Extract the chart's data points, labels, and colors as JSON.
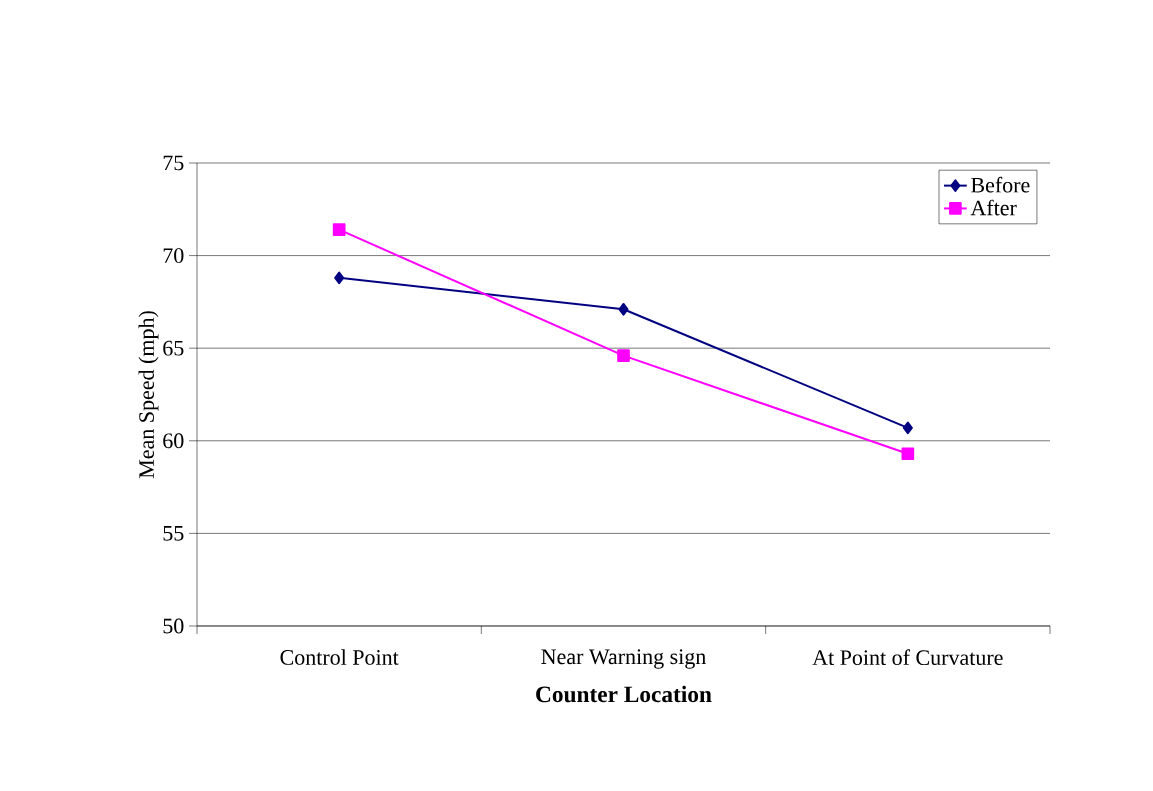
{
  "chart_data": {
    "type": "line",
    "xlabel": "Counter Location",
    "ylabel": "Mean Speed (mph)",
    "categories": [
      "Control Point",
      "Near Warning sign",
      "At Point of Curvature"
    ],
    "series": [
      {
        "name": "Before",
        "color": "#000080",
        "marker": "diamond",
        "values": [
          68.8,
          67.1,
          60.7
        ]
      },
      {
        "name": "After",
        "color": "#ff00ff",
        "marker": "square",
        "values": [
          71.4,
          64.6,
          59.3
        ]
      }
    ],
    "ylim": [
      50,
      75
    ],
    "yticks": [
      50,
      55,
      60,
      65,
      70,
      75
    ],
    "grid": "y",
    "legend": "top right"
  }
}
